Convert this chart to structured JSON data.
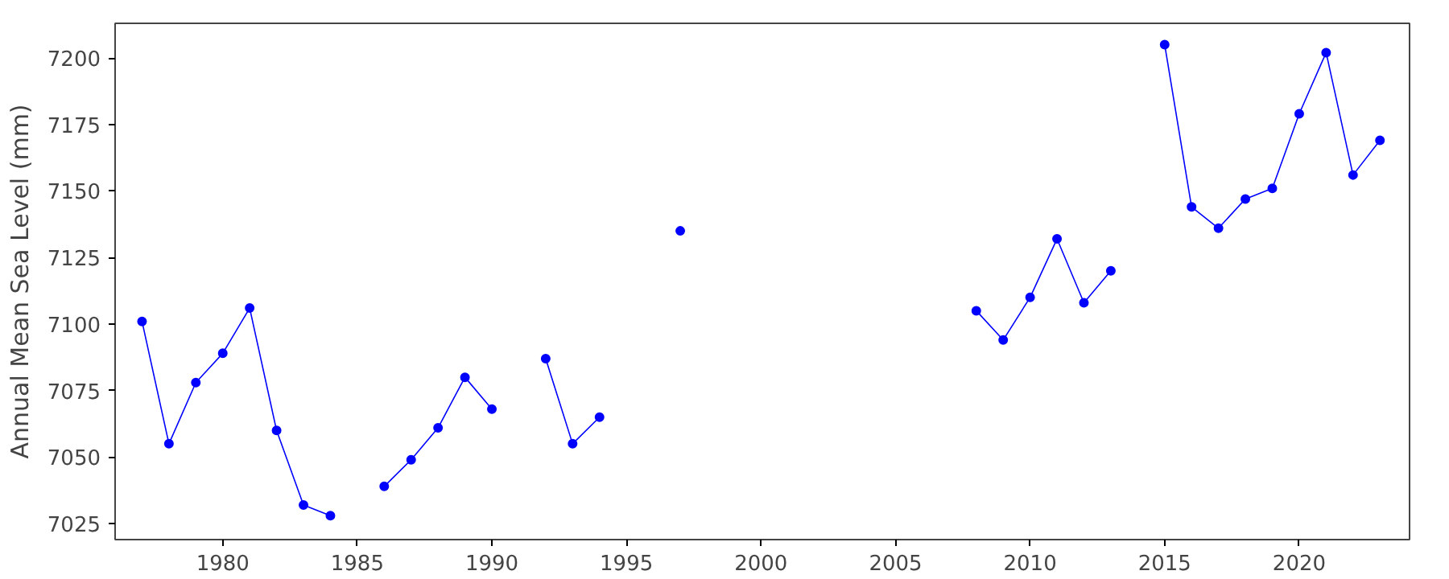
{
  "chart_data": {
    "type": "line",
    "ylabel": "Annual Mean Sea Level (mm)",
    "x": [
      1977,
      1978,
      1979,
      1980,
      1981,
      1982,
      1983,
      1984,
      1985,
      1986,
      1987,
      1988,
      1989,
      1990,
      1991,
      1992,
      1993,
      1994,
      1995,
      1996,
      1997,
      1998,
      1999,
      2000,
      2001,
      2002,
      2003,
      2004,
      2005,
      2006,
      2007,
      2008,
      2009,
      2010,
      2011,
      2012,
      2013,
      2014,
      2015,
      2016,
      2017,
      2018,
      2019,
      2020,
      2021,
      2022,
      2023
    ],
    "series": [
      {
        "color": "#0000ff",
        "values": [
          7101,
          7055,
          7078,
          7089,
          7106,
          7060,
          7032,
          7028,
          null,
          7039,
          7049,
          7061,
          7080,
          7068,
          null,
          7087,
          7055,
          7065,
          null,
          null,
          7135,
          null,
          null,
          null,
          null,
          null,
          null,
          null,
          null,
          null,
          null,
          7105,
          7094,
          7110,
          7132,
          7108,
          7120,
          null,
          7205,
          7144,
          7136,
          7147,
          7151,
          7179,
          7202,
          7156,
          7169
        ]
      }
    ],
    "xlim": [
      1976,
      2024.1
    ],
    "ylim": [
      7019,
      7213
    ],
    "xticks": [
      1980,
      1985,
      1990,
      1995,
      2000,
      2005,
      2010,
      2015,
      2020
    ],
    "yticks": [
      7025,
      7050,
      7075,
      7100,
      7125,
      7150,
      7175,
      7200
    ],
    "grid": false,
    "marker": "circle",
    "line_style": "solid"
  }
}
